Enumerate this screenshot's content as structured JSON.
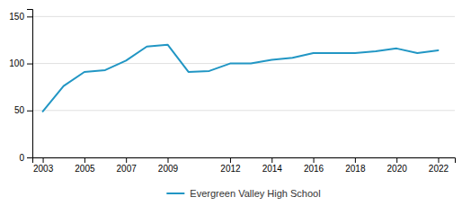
{
  "chart_data": {
    "type": "line",
    "x": [
      2003,
      2004,
      2005,
      2006,
      2007,
      2008,
      2009,
      2010,
      2011,
      2012,
      2013,
      2014,
      2015,
      2016,
      2017,
      2018,
      2019,
      2020,
      2021,
      2022
    ],
    "series": [
      {
        "name": "Evergreen Valley High School",
        "color": "#2196c4",
        "values": [
          49,
          76,
          91,
          93,
          103,
          118,
          120,
          91,
          92,
          100,
          100,
          104,
          106,
          111,
          111,
          111,
          113,
          116,
          111,
          114
        ]
      }
    ],
    "xlim": [
      2002.5,
      2022.8
    ],
    "xticks": [
      2003,
      2005,
      2007,
      2009,
      2012,
      2014,
      2016,
      2018,
      2020,
      2022
    ],
    "ylim": [
      0,
      158
    ],
    "yticks": [
      0,
      50,
      100,
      150
    ],
    "grid": true,
    "legend": "bottom"
  }
}
